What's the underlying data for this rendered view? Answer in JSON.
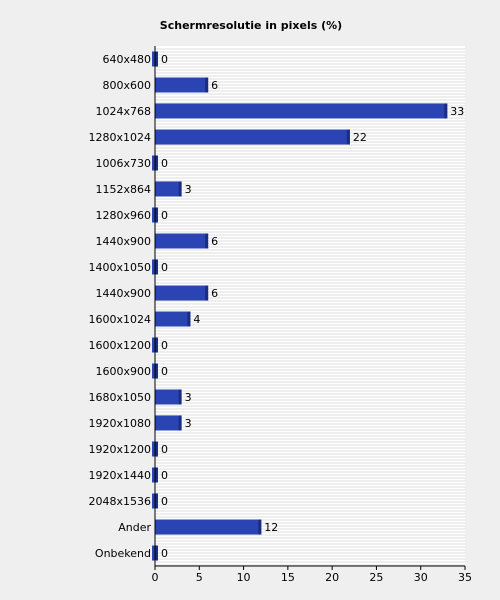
{
  "chart_data": {
    "type": "bar",
    "orientation": "horizontal",
    "title": "Schermresolutie in pixels (%)",
    "xlabel": "",
    "ylabel": "",
    "xlim": [
      0,
      35
    ],
    "xticks": [
      0,
      5,
      10,
      15,
      20,
      25,
      30,
      35
    ],
    "grid": true,
    "legend": "none",
    "bar_color": "#2a44b4",
    "bar_edge_color": "#1a2d80",
    "categories": [
      "640x480",
      "800x600",
      "1024x768",
      "1280x1024",
      "1006x730",
      "1152x864",
      "1280x960",
      "1440x900",
      "1400x1050",
      "1440x900",
      "1600x1024",
      "1600x1200",
      "1600x900",
      "1680x1050",
      "1920x1080",
      "1920x1200",
      "1920x1440",
      "2048x1536",
      "Ander",
      "Onbekend"
    ],
    "values": [
      0,
      6,
      33,
      22,
      0,
      3,
      0,
      6,
      0,
      6,
      4,
      0,
      0,
      3,
      3,
      0,
      0,
      0,
      12,
      0
    ]
  }
}
